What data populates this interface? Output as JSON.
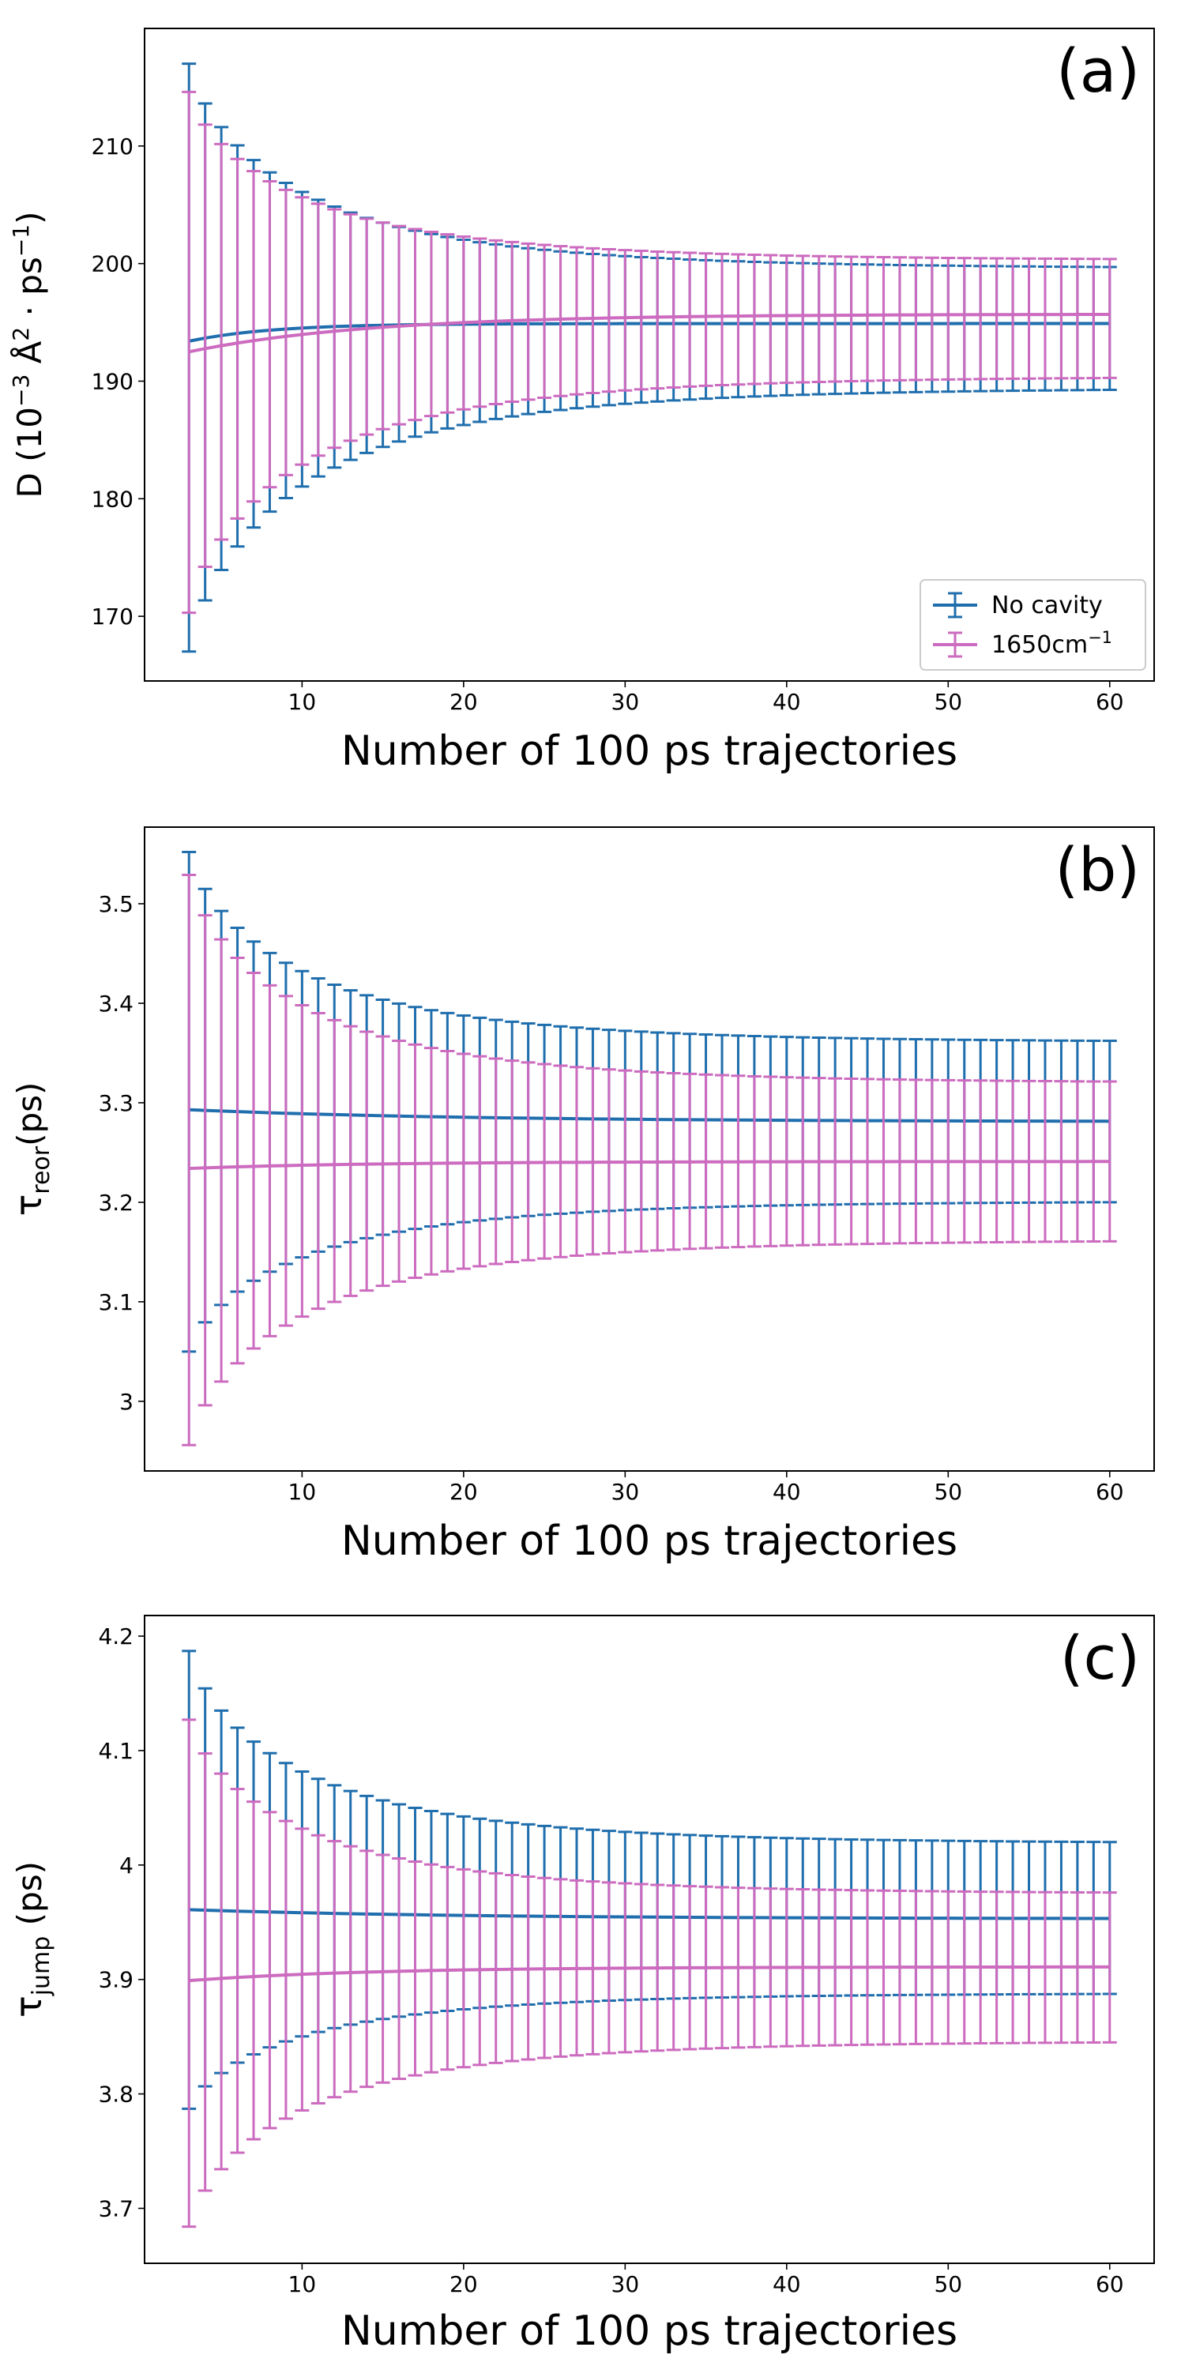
{
  "chart_data": [
    {
      "type": "errorbar",
      "panel_label": "(a)",
      "xlabel": "Number of 100 ps trajectories",
      "ylabel": "D (10⁻³ Å² · ps⁻¹)",
      "ylabel_parts": {
        "pre": "D (10",
        "sup1": "−3",
        "mid": " Å",
        "sup2": "2",
        "mid2": " ·  ps",
        "sup3": "−1",
        "post": ")"
      },
      "xlim": [
        0.25,
        62.75
      ],
      "ylim": [
        164.5,
        220
      ],
      "xticks": [
        10,
        20,
        30,
        40,
        50,
        60
      ],
      "yticks": [
        170,
        180,
        190,
        200,
        210
      ],
      "x_start": 3,
      "x_end": 60,
      "series": [
        {
          "name": "No cavity",
          "color": "#1f6ead",
          "mean": {
            "start": 193.4,
            "end": 194.9,
            "rate": 0.09
          },
          "upper": {
            "start": 217.0,
            "end": 199.6,
            "decay": 2.3,
            "exp": 0.78
          },
          "lower": {
            "start": 167.0,
            "end": 189.4,
            "decay": 2.3,
            "exp": 0.78
          }
        },
        {
          "name": "1650cm",
          "name_sup": "−1",
          "color": "#cc6bbf",
          "mean": {
            "start": 192.5,
            "end": 195.7,
            "rate": 0.2
          },
          "upper": {
            "start": 214.6,
            "end": 200.3,
            "decay": 2.3,
            "exp": 0.78
          },
          "lower": {
            "start": 170.3,
            "end": 190.4,
            "decay": 2.3,
            "exp": 0.78
          }
        }
      ]
    },
    {
      "type": "errorbar",
      "panel_label": "(b)",
      "xlabel": "Number of 100 ps trajectories",
      "ylabel": "τreor(ps)",
      "ylabel_parts": {
        "symbol": "τ",
        "sub": "reor",
        "post": "(ps)"
      },
      "xlim": [
        0.25,
        62.75
      ],
      "ylim": [
        2.93,
        3.577
      ],
      "xticks": [
        10,
        20,
        30,
        40,
        50,
        60
      ],
      "yticks": [
        3.0,
        3.1,
        3.2,
        3.3,
        3.4,
        3.5
      ],
      "x_start": 3,
      "x_end": 60,
      "series": [
        {
          "name": "No cavity",
          "color": "#1f6ead",
          "mean": {
            "start": 3.293,
            "end": 3.281,
            "rate": 0.3
          },
          "upper": {
            "start": 3.552,
            "end": 3.361,
            "decay": 2.3,
            "exp": 0.78
          },
          "lower": {
            "start": 3.05,
            "end": 3.201,
            "decay": 2.3,
            "exp": 0.78
          }
        },
        {
          "name": "1650cm",
          "name_sup": "−1",
          "color": "#cc6bbf",
          "mean": {
            "start": 3.234,
            "end": 3.241,
            "rate": 0.2
          },
          "upper": {
            "start": 3.529,
            "end": 3.32,
            "decay": 2.3,
            "exp": 0.78
          },
          "lower": {
            "start": 2.956,
            "end": 3.162,
            "decay": 2.3,
            "exp": 0.78
          }
        }
      ]
    },
    {
      "type": "errorbar",
      "panel_label": "(c)",
      "xlabel": "Number of 100 ps trajectories",
      "ylabel": "τjump (ps)",
      "ylabel_parts": {
        "symbol": "τ",
        "sub": "jump",
        "post": " (ps)"
      },
      "xlim": [
        0.25,
        62.75
      ],
      "ylim": [
        3.652,
        4.218
      ],
      "xticks": [
        10,
        20,
        30,
        40,
        50,
        60
      ],
      "yticks": [
        3.7,
        3.8,
        3.9,
        4.0,
        4.1,
        4.2
      ],
      "x_start": 3,
      "x_end": 60,
      "series": [
        {
          "name": "No cavity",
          "color": "#1f6ead",
          "mean": {
            "start": 3.961,
            "end": 3.953,
            "rate": 0.3
          },
          "upper": {
            "start": 4.187,
            "end": 4.019,
            "decay": 2.3,
            "exp": 0.78
          },
          "lower": {
            "start": 3.787,
            "end": 3.888,
            "decay": 2.3,
            "exp": 0.78
          }
        },
        {
          "name": "1650cm",
          "name_sup": "−1",
          "color": "#cc6bbf",
          "mean": {
            "start": 3.899,
            "end": 3.911,
            "rate": 0.2
          },
          "upper": {
            "start": 4.127,
            "end": 3.975,
            "decay": 2.3,
            "exp": 0.78
          },
          "lower": {
            "start": 3.684,
            "end": 3.846,
            "decay": 2.3,
            "exp": 0.78
          }
        }
      ]
    }
  ],
  "legend": {
    "entries": [
      {
        "label": "No cavity",
        "color": "#1f6ead"
      },
      {
        "label": "1650cm",
        "label_sup": "−1",
        "color": "#cc6bbf"
      }
    ],
    "position": "lower-right of panel (a)"
  }
}
